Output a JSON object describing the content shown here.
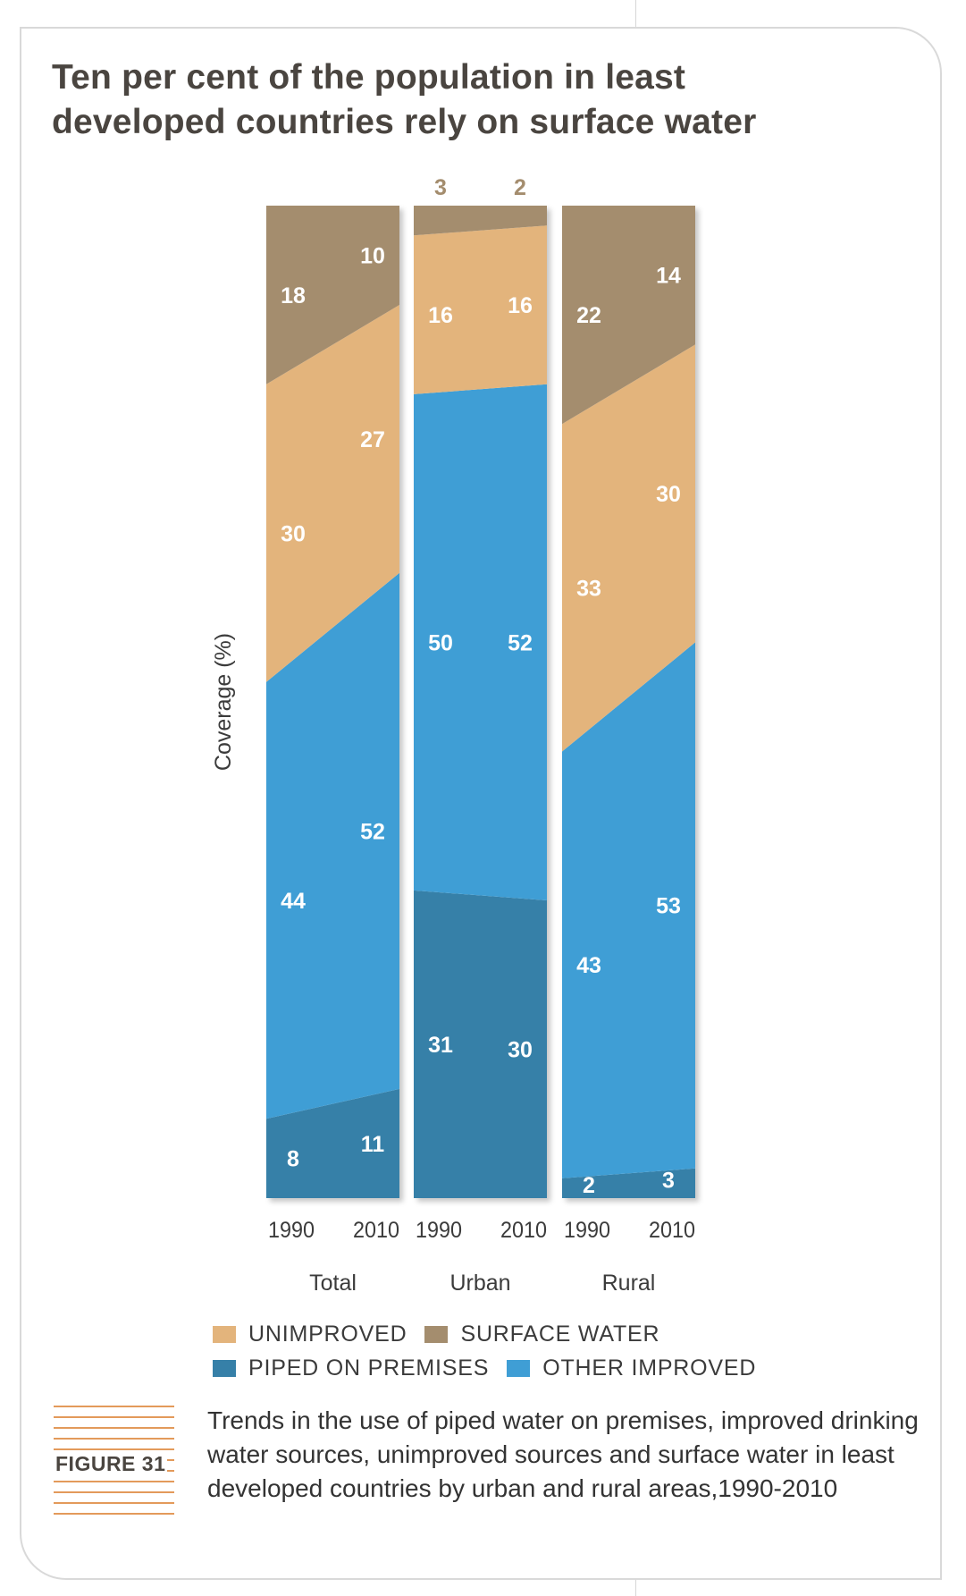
{
  "title": "Ten per cent of the population in least developed countries rely on surface water",
  "colors": {
    "piped": "#3680a8",
    "other_improved": "#3f9ed5",
    "unimproved": "#e3b47c",
    "surface": "#a48d6e",
    "label_white": "#ffffff",
    "label_surface_outside": "#a48d6e",
    "axis_text": "#3b3b3b"
  },
  "legend": [
    {
      "key": "unimproved",
      "label": "UNIMPROVED",
      "color": "#e3b47c"
    },
    {
      "key": "surface",
      "label": "SURFACE WATER",
      "color": "#a48d6e"
    },
    {
      "key": "piped",
      "label": "PIPED ON PREMISES",
      "color": "#3680a8"
    },
    {
      "key": "other_improved",
      "label": "OTHER IMPROVED",
      "color": "#3f9ed5"
    }
  ],
  "figure_label": "FIGURE 31",
  "caption": "Trends in the use of piped water on premises, improved drinking water sources, unimproved sources and surface water in least developed countries by urban and rural areas,1990-2010",
  "chart_data": {
    "type": "area",
    "stacked": true,
    "ylabel": "Coverage (%)",
    "ylim": [
      0,
      100
    ],
    "grid": false,
    "legend_position": "bottom",
    "layer_order_bottom_to_top": [
      "piped",
      "other_improved",
      "unimproved",
      "surface"
    ],
    "series_names": {
      "piped": "PIPED ON PREMISES",
      "other_improved": "OTHER IMPROVED",
      "unimproved": "UNIMPROVED",
      "surface": "SURFACE WATER"
    },
    "groups": [
      {
        "name": "Total",
        "years": [
          "1990",
          "2010"
        ],
        "values": {
          "piped": [
            8,
            11
          ],
          "other_improved": [
            44,
            52
          ],
          "unimproved": [
            30,
            27
          ],
          "surface": [
            18,
            10
          ]
        }
      },
      {
        "name": "Urban",
        "years": [
          "1990",
          "2010"
        ],
        "values": {
          "piped": [
            31,
            30
          ],
          "other_improved": [
            50,
            52
          ],
          "unimproved": [
            16,
            16
          ],
          "surface": [
            3,
            2
          ]
        }
      },
      {
        "name": "Rural",
        "years": [
          "1990",
          "2010"
        ],
        "values": {
          "piped": [
            2,
            3
          ],
          "other_improved": [
            43,
            53
          ],
          "unimproved": [
            33,
            30
          ],
          "surface": [
            22,
            14
          ]
        }
      }
    ]
  }
}
